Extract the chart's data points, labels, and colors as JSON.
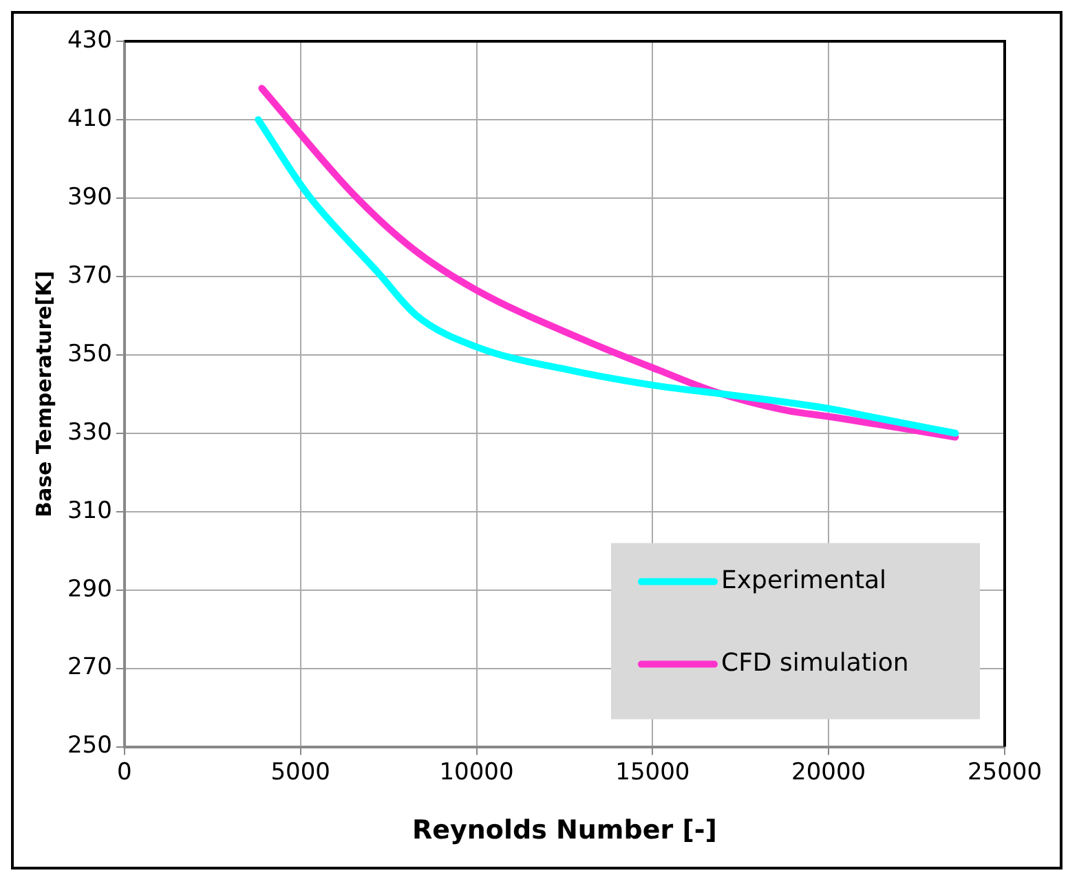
{
  "chart_data": {
    "type": "line",
    "xlabel": "Reynolds Number [-]",
    "ylabel": "Base Temperature[K]",
    "xlim": [
      0,
      25000
    ],
    "xticks": [
      0,
      5000,
      10000,
      15000,
      20000,
      25000
    ],
    "ylim": [
      250,
      430
    ],
    "yticks": [
      250,
      270,
      290,
      310,
      330,
      350,
      370,
      390,
      410,
      430
    ],
    "grid": true,
    "legend": "bottom right",
    "marker": "none",
    "line_style": "solid",
    "series": [
      {
        "name": "Experimental",
        "color": "#00ffff",
        "x": [
          3800,
          5200,
          7200,
          8300,
          10000,
          12700,
          15200,
          17000,
          20200,
          21300,
          23600
        ],
        "values": [
          410,
          391,
          371,
          360,
          352,
          346,
          342,
          340,
          336,
          334,
          330
        ]
      },
      {
        "name": "CFD simulation",
        "color": "#ff33cc",
        "x": [
          3900,
          6500,
          8200,
          10000,
          13000,
          15200,
          16800,
          18700,
          20200,
          23600
        ],
        "values": [
          418,
          391,
          377,
          366.5,
          354,
          346,
          340.5,
          336,
          334,
          329
        ]
      }
    ]
  }
}
